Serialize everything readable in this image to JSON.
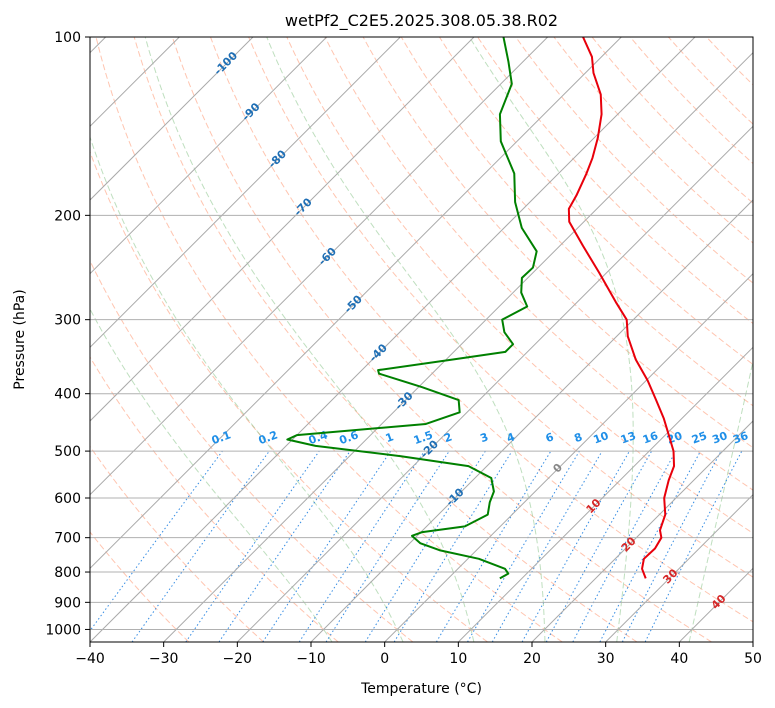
{
  "chart_data": {
    "type": "line",
    "diagram": "skew-T log-P",
    "title": "wetPf2_C2E5.2025.308.05.38.R02",
    "xlabel": "Temperature (°C)",
    "ylabel": "Pressure (hPa)",
    "xlim": [
      -40,
      50
    ],
    "ylim": [
      1050,
      100
    ],
    "x_ticks": [
      -40,
      -30,
      -20,
      -10,
      0,
      10,
      20,
      30,
      40,
      50
    ],
    "x_tick_labels": [
      "−40",
      "−30",
      "−20",
      "−10",
      "0",
      "10",
      "20",
      "30",
      "40",
      "50"
    ],
    "y_ticks": [
      100,
      200,
      300,
      400,
      500,
      600,
      700,
      800,
      900,
      1000
    ],
    "y_tick_labels": [
      "100",
      "200",
      "300",
      "400",
      "500",
      "600",
      "700",
      "800",
      "900",
      "1000"
    ],
    "grid": true,
    "series": [
      {
        "name": "temperature",
        "color": "#e8000b",
        "points": [
          {
            "p": 820,
            "t": 26.8
          },
          {
            "p": 790,
            "t": 25.0
          },
          {
            "p": 760,
            "t": 23.9
          },
          {
            "p": 730,
            "t": 24.0
          },
          {
            "p": 700,
            "t": 23.4
          },
          {
            "p": 680,
            "t": 22.2
          },
          {
            "p": 640,
            "t": 20.8
          },
          {
            "p": 600,
            "t": 18.4
          },
          {
            "p": 560,
            "t": 16.6
          },
          {
            "p": 530,
            "t": 15.4
          },
          {
            "p": 500,
            "t": 13.3
          },
          {
            "p": 470,
            "t": 10.5
          },
          {
            "p": 440,
            "t": 7.5
          },
          {
            "p": 410,
            "t": 4.0
          },
          {
            "p": 380,
            "t": 0.2
          },
          {
            "p": 350,
            "t": -4.3
          },
          {
            "p": 320,
            "t": -8.5
          },
          {
            "p": 300,
            "t": -10.9
          },
          {
            "p": 280,
            "t": -14.8
          },
          {
            "p": 250,
            "t": -21.0
          },
          {
            "p": 225,
            "t": -26.9
          },
          {
            "p": 205,
            "t": -32.0
          },
          {
            "p": 195,
            "t": -33.8
          },
          {
            "p": 185,
            "t": -34.6
          },
          {
            "p": 170,
            "t": -36.2
          },
          {
            "p": 160,
            "t": -37.5
          },
          {
            "p": 148,
            "t": -39.5
          },
          {
            "p": 135,
            "t": -42.2
          },
          {
            "p": 125,
            "t": -45.0
          },
          {
            "p": 115,
            "t": -48.9
          },
          {
            "p": 108,
            "t": -51.3
          },
          {
            "p": 100,
            "t": -55.2
          }
        ]
      },
      {
        "name": "dewpoint",
        "color": "#008000",
        "points": [
          {
            "p": 820,
            "t": 7.0
          },
          {
            "p": 805,
            "t": 7.5
          },
          {
            "p": 790,
            "t": 6.4
          },
          {
            "p": 760,
            "t": 1.5
          },
          {
            "p": 735,
            "t": -5.0
          },
          {
            "p": 715,
            "t": -8.6
          },
          {
            "p": 695,
            "t": -10.7
          },
          {
            "p": 685,
            "t": -9.8
          },
          {
            "p": 670,
            "t": -4.8
          },
          {
            "p": 640,
            "t": -3.3
          },
          {
            "p": 610,
            "t": -4.7
          },
          {
            "p": 585,
            "t": -5.6
          },
          {
            "p": 555,
            "t": -7.8
          },
          {
            "p": 530,
            "t": -12.5
          },
          {
            "p": 510,
            "t": -23.0
          },
          {
            "p": 490,
            "t": -36.0
          },
          {
            "p": 478,
            "t": -40.7
          },
          {
            "p": 470,
            "t": -40.0
          },
          {
            "p": 450,
            "t": -24.0
          },
          {
            "p": 430,
            "t": -21.0
          },
          {
            "p": 410,
            "t": -22.8
          },
          {
            "p": 390,
            "t": -29.5
          },
          {
            "p": 370,
            "t": -37.2
          },
          {
            "p": 365,
            "t": -37.8
          },
          {
            "p": 350,
            "t": -29.0
          },
          {
            "p": 340,
            "t": -23.0
          },
          {
            "p": 330,
            "t": -23.0
          },
          {
            "p": 315,
            "t": -25.8
          },
          {
            "p": 300,
            "t": -27.8
          },
          {
            "p": 285,
            "t": -26.2
          },
          {
            "p": 270,
            "t": -28.9
          },
          {
            "p": 255,
            "t": -30.8
          },
          {
            "p": 245,
            "t": -30.7
          },
          {
            "p": 230,
            "t": -32.4
          },
          {
            "p": 210,
            "t": -37.6
          },
          {
            "p": 190,
            "t": -42.0
          },
          {
            "p": 170,
            "t": -46.0
          },
          {
            "p": 150,
            "t": -52.2
          },
          {
            "p": 135,
            "t": -56.0
          },
          {
            "p": 120,
            "t": -58.5
          },
          {
            "p": 110,
            "t": -62.0
          },
          {
            "p": 100,
            "t": -66.0
          }
        ]
      }
    ],
    "isotherms_degC": [
      -120,
      -110,
      -100,
      -90,
      -80,
      -70,
      -60,
      -50,
      -40,
      -30,
      -20,
      -10,
      0,
      10,
      20,
      30,
      40,
      50
    ],
    "dry_adiabats_degC": [
      -30,
      -20,
      -10,
      0,
      10,
      20,
      30,
      40,
      50,
      60,
      70,
      80,
      90,
      100,
      110,
      120,
      130,
      140,
      150,
      160,
      170,
      180
    ],
    "moist_adiabats_degC": [
      -10,
      0,
      10,
      20,
      30,
      40
    ],
    "mixing_ratio_lines_gkg": [
      0.1,
      0.2,
      0.4,
      0.6,
      1,
      1.5,
      2,
      3,
      4,
      6,
      8,
      10,
      13,
      16,
      20,
      25,
      30,
      36
    ],
    "mixing_ratio_labels": [
      "0.1",
      "0.2",
      "0.4",
      "0.6",
      "1",
      "1.5",
      "2",
      "3",
      "4",
      "6",
      "8",
      "10",
      "13",
      "16",
      "20",
      "25",
      "30",
      "36"
    ],
    "isotherm_labels": [
      {
        "text": "-100",
        "value": -100
      },
      {
        "text": "-90",
        "value": -90
      },
      {
        "text": "-80",
        "value": -80
      },
      {
        "text": "-70",
        "value": -70
      },
      {
        "text": "-60",
        "value": -60
      },
      {
        "text": "-50",
        "value": -50
      },
      {
        "text": "-40",
        "value": -40
      },
      {
        "text": "-30",
        "value": -30
      },
      {
        "text": "-20",
        "value": -20
      },
      {
        "text": "-10",
        "value": -10
      }
    ],
    "warm_isotherm_labels": [
      {
        "text": "0",
        "value": 0
      },
      {
        "text": "10",
        "value": 10
      },
      {
        "text": "20",
        "value": 20
      },
      {
        "text": "30",
        "value": 30
      },
      {
        "text": "40",
        "value": 40
      }
    ],
    "colors": {
      "isotherm": "#aaaaaa",
      "dry_adiabat": "#ff7f50",
      "moist_adiabat": "#7fbf7f",
      "mixing_ratio": "#1f7fe0",
      "cold_label": "#1f6fb5",
      "zero_label": "#888888",
      "warm_label": "#d62728",
      "mix_label": "#1f8fe8",
      "background_curve": "#c8a078"
    }
  }
}
